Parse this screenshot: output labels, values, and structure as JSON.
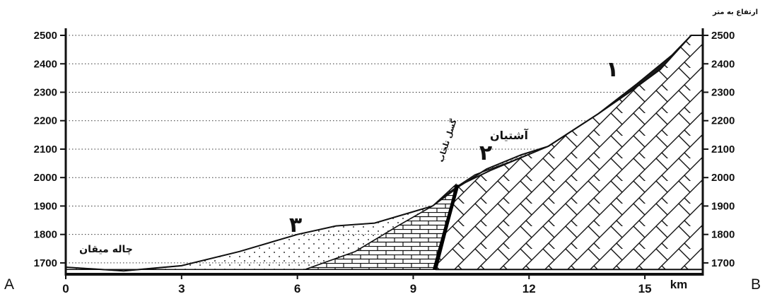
{
  "chart_data": {
    "type": "cross-section",
    "title": "",
    "xlabel": "km",
    "ylabel": "ارتفاع به متر",
    "xlim": [
      0,
      16.5
    ],
    "ylim": [
      1665,
      2510
    ],
    "y_ticks": [
      1700,
      1800,
      1900,
      2000,
      2100,
      2200,
      2300,
      2400,
      2500
    ],
    "x_ticks": [
      0,
      3,
      6,
      9,
      12,
      15
    ],
    "grid": "dotted horizontal",
    "endpoints": {
      "left": "A",
      "right": "B"
    },
    "labels": {
      "left_basin": "چاله میقان",
      "town": "آشتیان",
      "fault": "گسل تلخاب",
      "unit_1": "۱",
      "unit_2": "۲",
      "unit_3": "۳"
    }
  }
}
